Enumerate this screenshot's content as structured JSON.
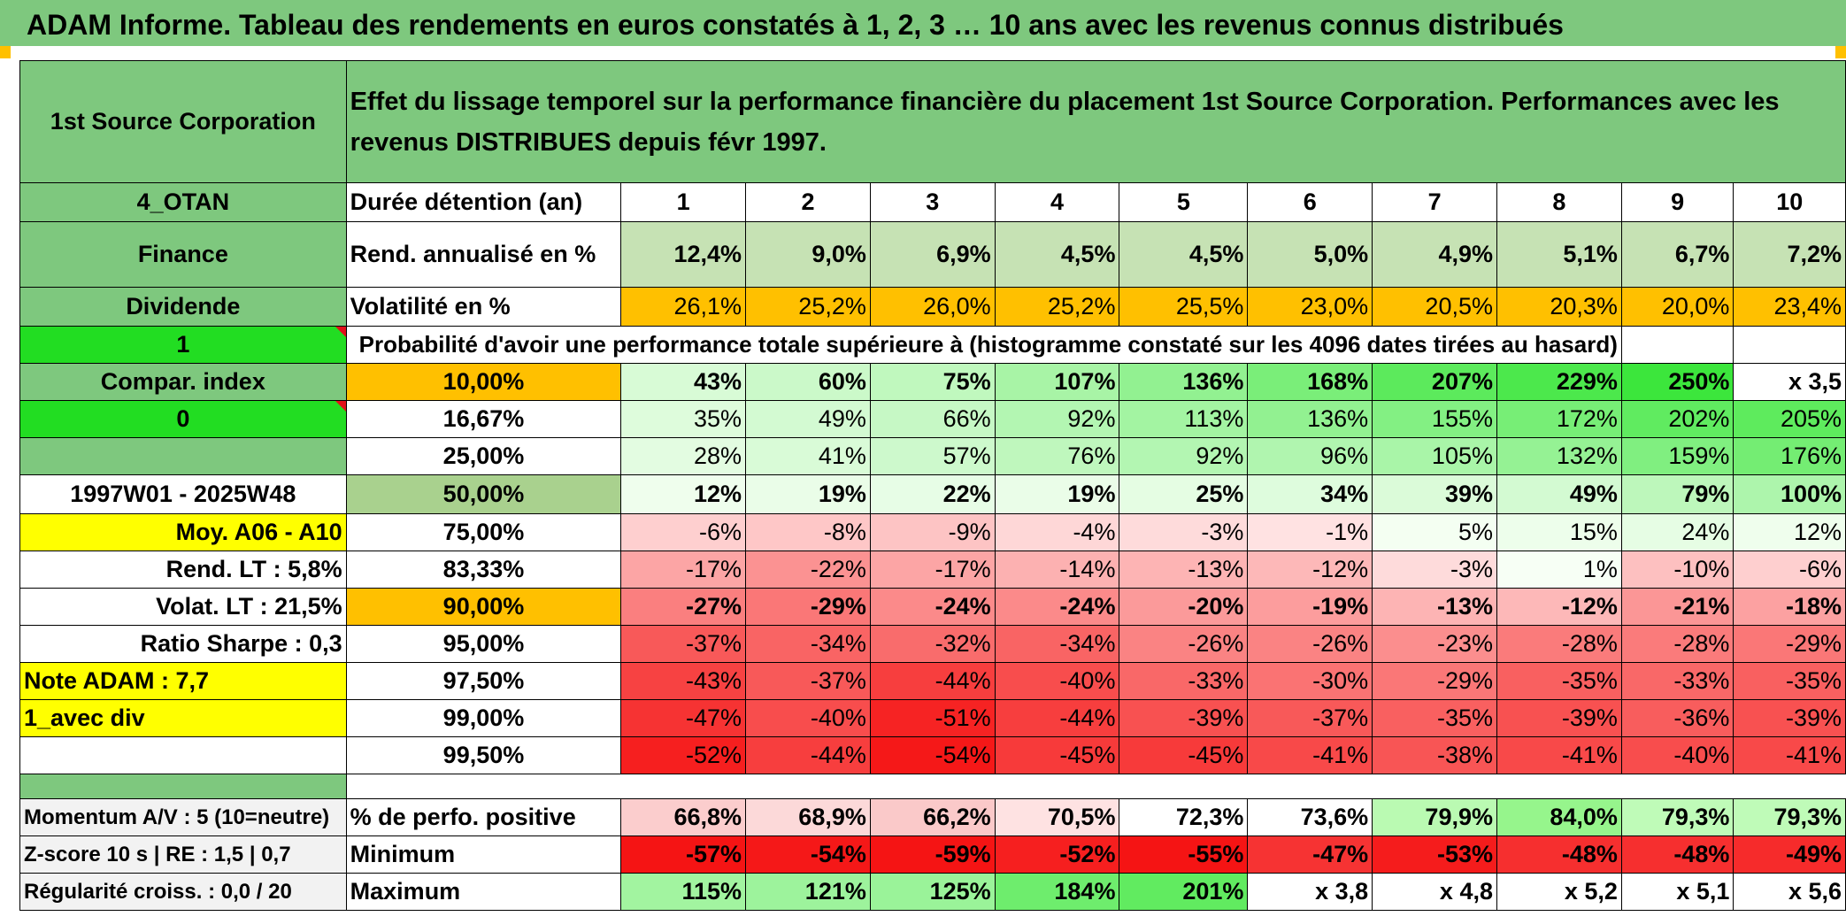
{
  "title": "ADAM Informe. Tableau des rendements en euros constatés à 1, 2, 3 … 10 ans avec les revenus connus distribués",
  "colors": {
    "green_header": "#7ec87e",
    "bright_green": "#22dd22",
    "yellow": "#ffff00",
    "orange": "#ffc000",
    "red_text": "#e0101a"
  },
  "header": {
    "name": "1st Source Corporation",
    "description": "Effet du lissage temporel sur la performance financière du placement 1st Source Corporation. Performances avec les revenus DISTRIBUES depuis févr 1997."
  },
  "side": {
    "code": "4_OTAN",
    "sector": "Finance",
    "type": "Dividende",
    "flag1": "1",
    "compar": "Compar. index",
    "flag0": "0",
    "period": "1997W01 - 2025W48",
    "moy": "Moy. A06 - A10",
    "rend_lt": "Rend. LT :   5,8%",
    "volat_lt": "Volat. LT :   21,5%",
    "sharpe": "Ratio Sharpe :    0,3",
    "note": "Note ADAM : 7,7",
    "avec_div": "1_avec div",
    "momentum": "Momentum A/V : 5 (10=neutre)",
    "zscore": "Z-score 10 s | RE : 1,5 | 0,7",
    "regularite": "Régularité croiss. : 0,0 / 20"
  },
  "labels": {
    "duree": "Durée détention (an)",
    "rend": "Rend. annualisé en %",
    "volat": "Volatilité en %",
    "proba": "Probabilité d'avoir une performance totale supérieure à (histogramme constaté sur les 4096 dates tirées au hasard)",
    "pct_pos": "% de perfo. positive",
    "minimum": "Minimum",
    "maximum": "Maximum"
  },
  "years": [
    "1",
    "2",
    "3",
    "4",
    "5",
    "6",
    "7",
    "8",
    "9",
    "10"
  ],
  "rend": [
    "12,4%",
    "9,0%",
    "6,9%",
    "4,5%",
    "4,5%",
    "5,0%",
    "4,9%",
    "5,1%",
    "6,7%",
    "7,2%"
  ],
  "volat": [
    "26,1%",
    "25,2%",
    "26,0%",
    "25,2%",
    "25,5%",
    "23,0%",
    "20,5%",
    "20,3%",
    "20,0%",
    "23,4%"
  ],
  "prob_rows": [
    {
      "pct": "10,00%",
      "values": [
        "43%",
        "60%",
        "75%",
        "107%",
        "136%",
        "168%",
        "207%",
        "229%",
        "250%",
        "x 3,5"
      ]
    },
    {
      "pct": "16,67%",
      "values": [
        "35%",
        "49%",
        "66%",
        "92%",
        "113%",
        "136%",
        "155%",
        "172%",
        "202%",
        "205%"
      ]
    },
    {
      "pct": "25,00%",
      "values": [
        "28%",
        "41%",
        "57%",
        "76%",
        "92%",
        "96%",
        "105%",
        "132%",
        "159%",
        "176%"
      ]
    },
    {
      "pct": "50,00%",
      "values": [
        "12%",
        "19%",
        "22%",
        "19%",
        "25%",
        "34%",
        "39%",
        "49%",
        "79%",
        "100%"
      ]
    },
    {
      "pct": "75,00%",
      "values": [
        "-6%",
        "-8%",
        "-9%",
        "-4%",
        "-3%",
        "-1%",
        "5%",
        "15%",
        "24%",
        "12%"
      ]
    },
    {
      "pct": "83,33%",
      "values": [
        "-17%",
        "-22%",
        "-17%",
        "-14%",
        "-13%",
        "-12%",
        "-3%",
        "1%",
        "-10%",
        "-6%"
      ]
    },
    {
      "pct": "90,00%",
      "values": [
        "-27%",
        "-29%",
        "-24%",
        "-24%",
        "-20%",
        "-19%",
        "-13%",
        "-12%",
        "-21%",
        "-18%"
      ]
    },
    {
      "pct": "95,00%",
      "values": [
        "-37%",
        "-34%",
        "-32%",
        "-34%",
        "-26%",
        "-26%",
        "-23%",
        "-28%",
        "-28%",
        "-29%"
      ]
    },
    {
      "pct": "97,50%",
      "values": [
        "-43%",
        "-37%",
        "-44%",
        "-40%",
        "-33%",
        "-30%",
        "-29%",
        "-35%",
        "-33%",
        "-35%"
      ]
    },
    {
      "pct": "99,00%",
      "values": [
        "-47%",
        "-40%",
        "-51%",
        "-44%",
        "-39%",
        "-37%",
        "-35%",
        "-39%",
        "-36%",
        "-39%"
      ]
    },
    {
      "pct": "99,50%",
      "values": [
        "-52%",
        "-44%",
        "-54%",
        "-45%",
        "-45%",
        "-41%",
        "-38%",
        "-41%",
        "-40%",
        "-41%"
      ]
    }
  ],
  "pct_pos": [
    "66,8%",
    "68,9%",
    "66,2%",
    "70,5%",
    "72,3%",
    "73,6%",
    "79,9%",
    "84,0%",
    "79,3%",
    "79,3%"
  ],
  "minimum": [
    "-57%",
    "-54%",
    "-59%",
    "-52%",
    "-55%",
    "-47%",
    "-53%",
    "-48%",
    "-48%",
    "-49%"
  ],
  "maximum": [
    "115%",
    "121%",
    "125%",
    "184%",
    "201%",
    "x 3,8",
    "x 4,8",
    "x 5,2",
    "x 5,1",
    "x 5,6"
  ]
}
